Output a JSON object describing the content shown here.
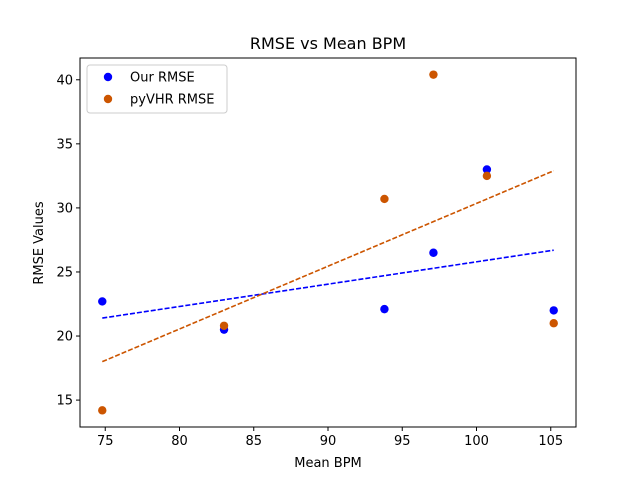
{
  "chart_data": {
    "type": "scatter",
    "title": "RMSE vs Mean BPM",
    "xlabel": "Mean BPM",
    "ylabel": "RMSE Values",
    "xlim": [
      73.3,
      106.7
    ],
    "ylim": [
      12.9,
      41.7
    ],
    "xticks": [
      75,
      80,
      85,
      90,
      95,
      100,
      105
    ],
    "yticks": [
      15,
      20,
      25,
      30,
      35,
      40
    ],
    "grid": false,
    "legend_position": "top-left",
    "series": [
      {
        "name": "Our RMSE",
        "color": "#0000ff",
        "x": [
          74.8,
          83.0,
          93.8,
          97.1,
          100.7,
          105.2
        ],
        "y": [
          22.7,
          20.5,
          22.1,
          26.5,
          33.0,
          22.0
        ],
        "trend": {
          "x": [
            74.8,
            105.2
          ],
          "y": [
            21.4,
            26.7
          ],
          "style": "dashed"
        }
      },
      {
        "name": "pyVHR RMSE",
        "color": "#cc5500",
        "x": [
          74.8,
          83.0,
          93.8,
          97.1,
          100.7,
          105.2
        ],
        "y": [
          14.2,
          20.8,
          30.7,
          40.4,
          32.5,
          21.0
        ],
        "trend": {
          "x": [
            74.8,
            105.2
          ],
          "y": [
            18.0,
            32.9
          ],
          "style": "dashed"
        }
      }
    ]
  }
}
